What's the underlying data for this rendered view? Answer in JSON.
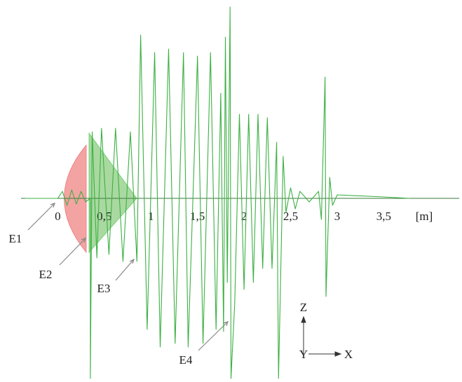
{
  "chart_data": {
    "type": "line",
    "color": "#3cb043",
    "x_label": "[m]",
    "x": [
      -0.35,
      0,
      0.05,
      0.1,
      0.15,
      0.2,
      0.25,
      0.3,
      0.35,
      0.35,
      0.37,
      0.42,
      0.47,
      0.55,
      0.62,
      0.7,
      0.78,
      0.85,
      0.89,
      0.96,
      1.04,
      1.1,
      1.19,
      1.26,
      1.35,
      1.4,
      1.5,
      1.56,
      1.64,
      1.7,
      1.75,
      1.78,
      1.8,
      1.82,
      1.85,
      1.86,
      1.9,
      1.95,
      2.0,
      2.05,
      2.1,
      2.15,
      2.2,
      2.25,
      2.3,
      2.35,
      2.37,
      2.42,
      2.45,
      2.5,
      2.55,
      2.6,
      2.7,
      2.8,
      2.83,
      2.87,
      2.88,
      2.92,
      2.95,
      3.0,
      3.5,
      3.78
    ],
    "values": [
      0,
      0,
      0.1,
      -0.1,
      0.12,
      -0.08,
      0.1,
      -0.05,
      0,
      -2.57,
      0.95,
      -0.85,
      1.0,
      -0.8,
      1.0,
      -0.9,
      0.95,
      -0.9,
      2.33,
      -1.87,
      2.08,
      -2.12,
      2.13,
      -2.07,
      2.08,
      -2.12,
      2.03,
      -2.07,
      2.08,
      -1.87,
      1.5,
      -1.9,
      2.3,
      -1.2,
      2.73,
      -2.57,
      -1.5,
      1.2,
      -1.3,
      1.2,
      -1.2,
      1.2,
      -1.0,
      1.15,
      -1.0,
      0.8,
      -2.57,
      0.6,
      -0.2,
      0.15,
      -0.15,
      0.1,
      -0.05,
      0.1,
      -0.3,
      1.73,
      -1.4,
      0.3,
      -0.1,
      0.05,
      0.02,
      0
    ],
    "xlim": [
      -0.62,
      4.34
    ],
    "ylim": [
      -2.62,
      2.83
    ],
    "xticks": [
      0,
      {
        "value": 0.5,
        "label": "0,5"
      },
      1,
      {
        "value": 1.5,
        "label": "1,5"
      },
      2,
      {
        "value": 2.5,
        "label": "2,5"
      },
      3,
      {
        "value": 3.5,
        "label": "3,5"
      }
    ],
    "annotations": [
      "E1",
      "E2",
      "E3",
      "E4"
    ],
    "axes_triad": {
      "z": "Z",
      "y": "Y",
      "x": "X"
    }
  }
}
